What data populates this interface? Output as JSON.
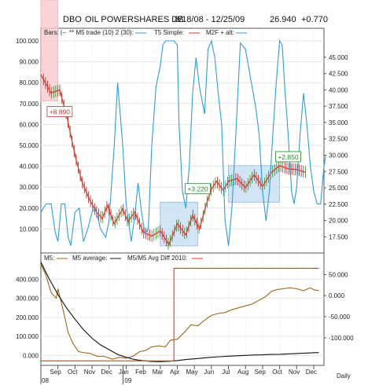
{
  "header": {
    "symbol": "DBO",
    "name": "OIL POWERSHARES DB",
    "range": "8/18/08 - 12/25/09",
    "last": "26.940",
    "change": "+0.770"
  },
  "top_legend": {
    "bars": "Bars: |--",
    "m5trade": "** M5 trade (10) 2 (30):",
    "t5": "T5 Simple:",
    "m2f": "M2F + alt:"
  },
  "bottom_legend": {
    "m5": "M5:",
    "m5avg": "M5 average:",
    "avgdiff": "M5/M5 Avg Diff 2010:"
  },
  "annotations": [
    "+8.890",
    "+3.220",
    "+2.850"
  ],
  "periodicity": "Daily",
  "colors": {
    "price_line": "#e03a2a",
    "oscillator": "#2a9ee8",
    "bar_up": "#1f8f1f",
    "bar_down": "#b22222",
    "trade_box": "#c6dff3",
    "trade_box_border": "#6a9fd0",
    "loss_box": "#f7c8cc",
    "m5": "#9a6a1e",
    "m5avg": "#111111",
    "avgdiff": "#e03a2a",
    "label_green": "#1f8f1f",
    "label_red": "#c0392b"
  },
  "chart_data": [
    {
      "type": "line",
      "panel": "upper",
      "title": "DBO  OIL POWERSHARES DB  8/18/08 - 12/25/09",
      "x": [
        "Aug",
        "Sep",
        "Oct",
        "Nov",
        "Dec",
        "Jan",
        "Feb",
        "Mar",
        "Apr",
        "May",
        "Jun",
        "Jul",
        "Aug",
        "Sep",
        "Oct",
        "Nov",
        "Dec"
      ],
      "x_tick_labels": [
        "Sep",
        "Oct",
        "Nov",
        "Dec",
        "Jan",
        "Feb",
        "Mar",
        "Apr",
        "May",
        "Jun",
        "Jul",
        "Aug",
        "Sep",
        "Oct",
        "Nov",
        "Dec"
      ],
      "year_labels": [
        "08",
        "09"
      ],
      "left_axis": {
        "ticks": [
          "100.000",
          "90.000",
          "80.000",
          "70.000",
          "60.000",
          "50.000",
          "40.000",
          "30.000",
          "20.000",
          "10.000"
        ],
        "ylim": [
          0,
          100
        ]
      },
      "right_axis": {
        "ticks": [
          "45.000",
          "42.500",
          "40.000",
          "37.500",
          "35.000",
          "32.500",
          "30.000",
          "27.500",
          "25.000",
          "22.500",
          "20.000",
          "17.500"
        ],
        "ylim": [
          15.5,
          47.5
        ]
      },
      "series": [
        {
          "name": "T5 Simple",
          "axis": "right",
          "points": [
            [
              0.0,
              42.3
            ],
            [
              0.6,
              39.5
            ],
            [
              1.1,
              40.0
            ],
            [
              1.5,
              36.2
            ],
            [
              2.0,
              30.0
            ],
            [
              2.4,
              26.0
            ],
            [
              2.8,
              23.5
            ],
            [
              3.2,
              21.5
            ],
            [
              3.6,
              20.3
            ],
            [
              3.9,
              22.3
            ],
            [
              4.3,
              19.5
            ],
            [
              4.8,
              21.8
            ],
            [
              5.1,
              19.8
            ],
            [
              5.5,
              21.3
            ],
            [
              6.0,
              18.2
            ],
            [
              6.5,
              17.6
            ],
            [
              7.0,
              18.4
            ],
            [
              7.5,
              16.3
            ],
            [
              8.0,
              19.5
            ],
            [
              8.5,
              17.8
            ],
            [
              8.9,
              20.8
            ],
            [
              9.3,
              18.7
            ],
            [
              9.7,
              22.5
            ],
            [
              10.0,
              24.8
            ],
            [
              10.3,
              26.0
            ],
            [
              10.7,
              24.6
            ],
            [
              11.0,
              26.0
            ],
            [
              11.5,
              26.4
            ],
            [
              12.0,
              25.0
            ],
            [
              12.5,
              27.0
            ],
            [
              13.0,
              25.2
            ],
            [
              13.5,
              27.3
            ],
            [
              14.0,
              28.4
            ],
            [
              14.5,
              27.9
            ],
            [
              15.0,
              27.8
            ],
            [
              15.5,
              27.4
            ]
          ]
        },
        {
          "name": "M5 trade",
          "axis": "left",
          "points": [
            [
              0.0,
              18
            ],
            [
              0.3,
              22
            ],
            [
              0.6,
              22
            ],
            [
              0.85,
              8
            ],
            [
              1.0,
              4
            ],
            [
              1.2,
              22
            ],
            [
              1.4,
              22
            ],
            [
              1.6,
              6
            ],
            [
              1.75,
              2
            ],
            [
              2.0,
              18
            ],
            [
              2.25,
              20
            ],
            [
              2.5,
              4
            ],
            [
              2.75,
              10
            ],
            [
              3.0,
              18
            ],
            [
              3.2,
              20
            ],
            [
              3.5,
              10
            ],
            [
              3.8,
              6
            ],
            [
              4.0,
              14
            ],
            [
              4.3,
              50
            ],
            [
              4.5,
              80
            ],
            [
              4.8,
              50
            ],
            [
              5.0,
              22
            ],
            [
              5.3,
              4
            ],
            [
              5.5,
              16
            ],
            [
              5.7,
              32
            ],
            [
              5.9,
              18
            ],
            [
              6.1,
              8
            ],
            [
              6.3,
              10
            ],
            [
              6.5,
              50
            ],
            [
              6.75,
              78
            ],
            [
              7.0,
              88
            ],
            [
              7.15,
              98
            ],
            [
              7.3,
              100
            ],
            [
              7.8,
              100
            ],
            [
              8.0,
              98
            ],
            [
              8.1,
              60
            ],
            [
              8.3,
              28
            ],
            [
              8.5,
              20
            ],
            [
              8.7,
              40
            ],
            [
              8.9,
              75
            ],
            [
              9.1,
              92
            ],
            [
              9.3,
              78
            ],
            [
              9.6,
              65
            ],
            [
              9.8,
              96
            ],
            [
              10.0,
              100
            ],
            [
              10.2,
              92
            ],
            [
              10.4,
              75
            ],
            [
              10.6,
              60
            ],
            [
              10.8,
              14
            ],
            [
              11.0,
              2
            ],
            [
              11.2,
              20
            ],
            [
              11.4,
              50
            ],
            [
              11.7,
              99
            ],
            [
              12.0,
              96
            ],
            [
              12.3,
              82
            ],
            [
              12.6,
              68
            ],
            [
              12.8,
              55
            ],
            [
              13.0,
              28
            ],
            [
              13.2,
              14
            ],
            [
              13.4,
              28
            ],
            [
              13.6,
              55
            ],
            [
              13.8,
              80
            ],
            [
              14.0,
              100
            ],
            [
              14.15,
              98
            ],
            [
              14.3,
              78
            ],
            [
              14.5,
              55
            ],
            [
              14.7,
              28
            ],
            [
              14.85,
              22
            ],
            [
              15.0,
              30
            ],
            [
              15.2,
              55
            ],
            [
              15.4,
              75
            ],
            [
              15.6,
              60
            ],
            [
              15.8,
              40
            ],
            [
              16.0,
              28
            ],
            [
              16.2,
              22
            ],
            [
              16.4,
              22
            ],
            [
              16.6,
              40
            ],
            [
              16.7,
              45
            ]
          ]
        }
      ],
      "trade_boxes": [
        {
          "kind": "loss",
          "x": [
            0.0,
            1.0
          ],
          "y": [
            38.3,
            47.5
          ]
        },
        {
          "kind": "gain",
          "x": [
            7.0,
            9.2
          ],
          "y": [
            16.1,
            22.8
          ]
        },
        {
          "kind": "gain",
          "x": [
            11.0,
            14.0
          ],
          "y": [
            22.8,
            28.4
          ]
        }
      ],
      "annotations": [
        {
          "text": "+8.890",
          "x": 1.1,
          "y": 36.6,
          "color": "red"
        },
        {
          "text": "+3.220",
          "x": 9.2,
          "y": 24.8,
          "color": "green"
        },
        {
          "text": "+2.850",
          "x": 14.5,
          "y": 29.7,
          "color": "green"
        }
      ]
    },
    {
      "type": "line",
      "panel": "lower",
      "title": "",
      "x": [
        "Aug",
        "Sep",
        "Oct",
        "Nov",
        "Dec",
        "Jan",
        "Feb",
        "Mar",
        "Apr",
        "May",
        "Jun",
        "Jul",
        "Aug",
        "Sep",
        "Oct",
        "Nov",
        "Dec"
      ],
      "left_axis": {
        "ticks": [
          "400.000",
          "300.000",
          "200.000",
          "100.000",
          "0.000"
        ],
        "ylim": [
          -40,
          480
        ]
      },
      "right_axis": {
        "ticks": [
          "50.000",
          "0.000",
          "-50.000",
          "-100.000"
        ],
        "ylim": [
          -160,
          75
        ]
      },
      "series": [
        {
          "name": "M5",
          "axis": "left",
          "points": [
            [
              0.0,
              480
            ],
            [
              0.3,
              420
            ],
            [
              0.6,
              330
            ],
            [
              0.9,
              300
            ],
            [
              1.0,
              350
            ],
            [
              1.3,
              240
            ],
            [
              1.6,
              120
            ],
            [
              1.9,
              60
            ],
            [
              2.2,
              20
            ],
            [
              2.5,
              15
            ],
            [
              2.9,
              10
            ],
            [
              3.3,
              -5
            ],
            [
              3.7,
              -5
            ],
            [
              4.2,
              -20
            ],
            [
              4.6,
              -10
            ],
            [
              5.0,
              -15
            ],
            [
              5.4,
              -5
            ],
            [
              5.8,
              20
            ],
            [
              6.1,
              25
            ],
            [
              6.5,
              45
            ],
            [
              6.9,
              50
            ],
            [
              7.3,
              45
            ],
            [
              7.6,
              80
            ],
            [
              8.0,
              85
            ],
            [
              8.4,
              120
            ],
            [
              8.8,
              160
            ],
            [
              9.2,
              155
            ],
            [
              9.6,
              185
            ],
            [
              10.0,
              210
            ],
            [
              10.4,
              220
            ],
            [
              10.8,
              225
            ],
            [
              11.2,
              240
            ],
            [
              11.6,
              250
            ],
            [
              12.0,
              260
            ],
            [
              12.4,
              270
            ],
            [
              12.8,
              290
            ],
            [
              13.2,
              310
            ],
            [
              13.5,
              335
            ],
            [
              13.8,
              345
            ],
            [
              14.2,
              350
            ],
            [
              14.6,
              355
            ],
            [
              15.0,
              350
            ],
            [
              15.4,
              340
            ],
            [
              15.8,
              355
            ],
            [
              16.0,
              345
            ],
            [
              16.3,
              340
            ]
          ]
        },
        {
          "name": "M5 average",
          "axis": "left",
          "points": [
            [
              0.0,
              490
            ],
            [
              0.5,
              400
            ],
            [
              1.0,
              320
            ],
            [
              1.5,
              250
            ],
            [
              2.0,
              190
            ],
            [
              2.5,
              135
            ],
            [
              3.0,
              90
            ],
            [
              3.5,
              55
            ],
            [
              4.0,
              30
            ],
            [
              4.5,
              5
            ],
            [
              5.0,
              -10
            ],
            [
              5.5,
              -22
            ],
            [
              6.0,
              -28
            ],
            [
              6.5,
              -32
            ],
            [
              7.0,
              -33
            ],
            [
              7.5,
              -31
            ],
            [
              8.0,
              -27
            ],
            [
              8.5,
              -22
            ],
            [
              9.0,
              -18
            ],
            [
              9.5,
              -14
            ],
            [
              10.0,
              -10
            ],
            [
              10.5,
              -7
            ],
            [
              11.0,
              -4
            ],
            [
              11.5,
              -2
            ],
            [
              12.0,
              0
            ],
            [
              12.5,
              2
            ],
            [
              13.0,
              3
            ],
            [
              13.5,
              5
            ],
            [
              14.0,
              6
            ],
            [
              14.5,
              8
            ],
            [
              15.0,
              10
            ],
            [
              15.5,
              12
            ],
            [
              16.0,
              14
            ],
            [
              16.3,
              15
            ]
          ]
        },
        {
          "name": "M5/M5 Avg Diff 2010",
          "axis": "right",
          "points": [
            [
              0.0,
              -155
            ],
            [
              7.8,
              -155
            ],
            [
              7.8,
              65
            ],
            [
              16.3,
              65
            ]
          ]
        }
      ]
    }
  ]
}
